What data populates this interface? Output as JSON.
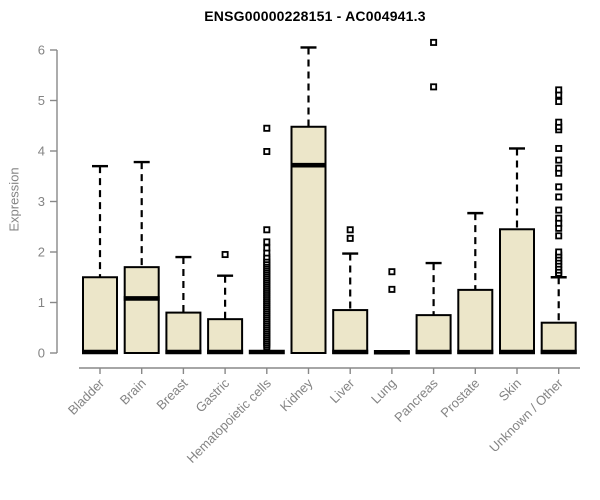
{
  "chart_data": {
    "type": "boxplot",
    "title": "ENSG00000228151 - AC004941.3",
    "ylabel": "Expression",
    "xlabel": "",
    "ylim": [
      0,
      6
    ],
    "yticks": [
      0,
      1,
      2,
      3,
      4,
      5,
      6
    ],
    "grid": false,
    "legend": "none",
    "categories": [
      "Bladder",
      "Brain",
      "Breast",
      "Gastric",
      "Hematopoietic cells",
      "Kidney",
      "Liver",
      "Lung",
      "Pancreas",
      "Prostate",
      "Skin",
      "Unknown / Other"
    ],
    "series": [
      {
        "name": "Bladder",
        "whisker_low": 0,
        "q1": 0,
        "median": 0.02,
        "q3": 1.5,
        "whisker_high": 3.7,
        "outliers": []
      },
      {
        "name": "Brain",
        "whisker_low": 0,
        "q1": 0,
        "median": 1.08,
        "q3": 1.7,
        "whisker_high": 3.78,
        "outliers": []
      },
      {
        "name": "Breast",
        "whisker_low": 0,
        "q1": 0,
        "median": 0.02,
        "q3": 0.8,
        "whisker_high": 1.9,
        "outliers": []
      },
      {
        "name": "Gastric",
        "whisker_low": 0,
        "q1": 0,
        "median": 0.02,
        "q3": 0.67,
        "whisker_high": 1.53,
        "outliers": [
          1.95
        ]
      },
      {
        "name": "Hematopoietic cells",
        "whisker_low": 0,
        "q1": 0,
        "median": 0.02,
        "q3": 0.04,
        "whisker_high": 0.04,
        "outliers": [
          0.12,
          0.16,
          0.2,
          0.24,
          0.28,
          0.32,
          0.36,
          0.4,
          0.44,
          0.48,
          0.52,
          0.56,
          0.6,
          0.64,
          0.68,
          0.72,
          0.76,
          0.8,
          0.84,
          0.88,
          0.92,
          0.96,
          1.0,
          1.04,
          1.08,
          1.12,
          1.16,
          1.2,
          1.24,
          1.28,
          1.32,
          1.36,
          1.4,
          1.44,
          1.48,
          1.52,
          1.56,
          1.6,
          1.64,
          1.68,
          1.72,
          1.76,
          1.8,
          1.85,
          1.9,
          1.98,
          2.08,
          2.2,
          2.44,
          3.99,
          4.45
        ]
      },
      {
        "name": "Kidney",
        "whisker_low": 0,
        "q1": 0,
        "median": 3.72,
        "q3": 4.48,
        "whisker_high": 6.05,
        "outliers": []
      },
      {
        "name": "Liver",
        "whisker_low": 0,
        "q1": 0,
        "median": 0.02,
        "q3": 0.85,
        "whisker_high": 1.97,
        "outliers": [
          2.27,
          2.44
        ]
      },
      {
        "name": "Lung",
        "whisker_low": 0,
        "q1": 0,
        "median": 0.015,
        "q3": 0.03,
        "whisker_high": 0.03,
        "outliers": [
          1.26,
          1.61
        ]
      },
      {
        "name": "Pancreas",
        "whisker_low": 0,
        "q1": 0,
        "median": 0.02,
        "q3": 0.75,
        "whisker_high": 1.78,
        "outliers": [
          5.27,
          6.15
        ]
      },
      {
        "name": "Prostate",
        "whisker_low": 0,
        "q1": 0,
        "median": 0.02,
        "q3": 1.25,
        "whisker_high": 2.77,
        "outliers": []
      },
      {
        "name": "Skin",
        "whisker_low": 0,
        "q1": 0,
        "median": 0.02,
        "q3": 2.45,
        "whisker_high": 4.05,
        "outliers": []
      },
      {
        "name": "Unknown / Other",
        "whisker_low": 0,
        "q1": 0,
        "median": 0.02,
        "q3": 0.6,
        "whisker_high": 1.5,
        "outliers": [
          1.55,
          1.58,
          1.64,
          1.7,
          1.76,
          1.82,
          1.88,
          1.94,
          2.0,
          2.32,
          2.47,
          2.57,
          2.67,
          2.83,
          3.09,
          3.29,
          3.56,
          3.66,
          3.82,
          4.05,
          4.42,
          4.48,
          4.57,
          4.98,
          5.11,
          5.21
        ]
      }
    ],
    "colors": {
      "box_fill": "#ece6c9",
      "box_stroke": "#000000",
      "median": "#000000",
      "whisker": "#000000",
      "outlier_stroke": "#000000",
      "outlier_fill": "#ffffff",
      "axis": "#888888",
      "axis_text": "#848484",
      "title": "#000000",
      "background": "#ffffff"
    }
  }
}
